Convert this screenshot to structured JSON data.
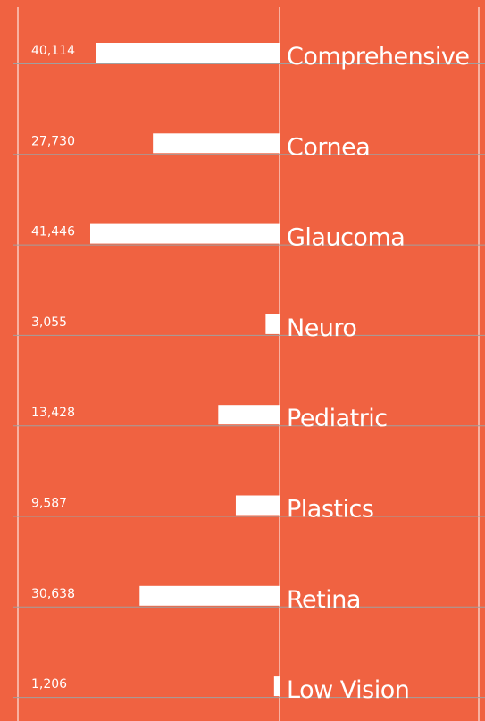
{
  "chart_data": {
    "type": "bar",
    "orientation": "horizontal",
    "color": "#ffffff",
    "categories": [
      "Comprehensive",
      "Cornea",
      "Glaucoma",
      "Neuro",
      "Pediatric",
      "Plastics",
      "Retina",
      "Low Vision"
    ],
    "values": [
      40114,
      27730,
      41446,
      3055,
      13428,
      9587,
      30638,
      1206
    ],
    "value_labels": [
      "40,114",
      "27,730",
      "41,446",
      "3,055",
      "13,428",
      "9,587",
      "30,638",
      "1,206"
    ]
  }
}
